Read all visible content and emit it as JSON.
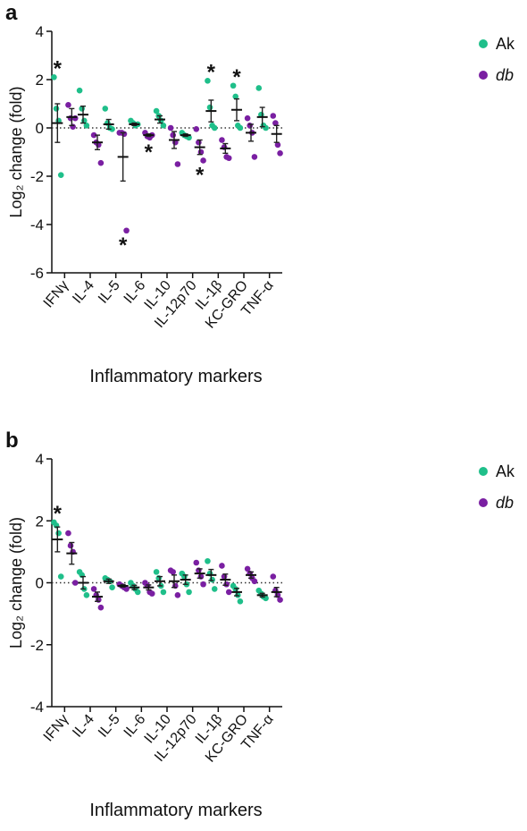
{
  "chart_data": [
    {
      "type": "dot",
      "panel": "a",
      "ylabel": "Log₂ change (fold)",
      "xlabel": "Inflammatory markers",
      "categories": [
        "IFNγ",
        "IL-4",
        "IL-5",
        "IL-6",
        "IL-10",
        "IL-12p70",
        "IL-1β",
        "KC-GRO",
        "TNF-α"
      ],
      "ylim": [
        -6,
        4
      ],
      "yticks": [
        -6,
        -4,
        -2,
        0,
        2,
        4
      ],
      "legend": "upper right",
      "series": [
        {
          "name": "Ak",
          "color": "#1fbf8a",
          "points": [
            [
              2.1,
              0.8,
              0.3,
              -1.95
            ],
            [
              1.55,
              0.8,
              0.3,
              0.1
            ],
            [
              0.8,
              0.2,
              0.0,
              -0.05
            ],
            [
              0.3,
              0.2,
              0.1,
              0.15
            ],
            [
              0.7,
              0.5,
              0.3,
              0.1
            ],
            [
              -0.2,
              -0.3,
              -0.35,
              -0.4
            ],
            [
              1.95,
              0.85,
              0.1,
              0.0
            ],
            [
              1.75,
              1.3,
              0.1,
              0.0
            ],
            [
              1.65,
              0.55,
              0.1,
              0.0
            ]
          ],
          "means": [
            0.2,
            0.55,
            0.15,
            0.15,
            0.35,
            -0.3,
            0.7,
            0.75,
            0.45
          ],
          "errors": [
            0.8,
            0.35,
            0.2,
            0.05,
            0.15,
            0.05,
            0.45,
            0.45,
            0.4
          ],
          "stars": [
            "*",
            null,
            null,
            null,
            null,
            null,
            "*",
            "*",
            null
          ]
        },
        {
          "name": "db",
          "color": "#7a1fa2",
          "points": [
            [
              0.95,
              0.4,
              0.05,
              0.4
            ],
            [
              -0.3,
              -0.6,
              -0.7,
              -1.45
            ],
            [
              -0.2,
              -0.2,
              -0.25,
              -4.25
            ],
            [
              -0.2,
              -0.35,
              -0.4,
              -0.3
            ],
            [
              0.0,
              -0.3,
              -0.6,
              -1.5
            ],
            [
              -0.05,
              -0.6,
              -1.0,
              -1.35
            ],
            [
              -0.5,
              -0.8,
              -1.2,
              -1.25
            ],
            [
              0.4,
              0.1,
              -0.2,
              -1.2
            ],
            [
              0.5,
              0.2,
              -0.7,
              -1.05
            ]
          ],
          "means": [
            0.45,
            -0.6,
            -1.2,
            -0.3,
            -0.5,
            -0.8,
            -0.85,
            -0.2,
            -0.25
          ],
          "errors": [
            0.35,
            0.3,
            1.0,
            0.05,
            0.35,
            0.3,
            0.2,
            0.35,
            0.35
          ],
          "stars": [
            null,
            null,
            "*",
            "*",
            null,
            "*",
            null,
            null,
            null
          ]
        }
      ]
    },
    {
      "type": "dot",
      "panel": "b",
      "ylabel": "Log₂ change (fold)",
      "xlabel": "Inflammatory markers",
      "categories": [
        "IFNγ",
        "IL-4",
        "IL-5",
        "IL-6",
        "IL-10",
        "IL-12p70",
        "IL-1β",
        "KC-GRO",
        "TNF-α"
      ],
      "ylim": [
        -4,
        4
      ],
      "yticks": [
        -4,
        -2,
        0,
        2,
        4
      ],
      "legend": "upper right",
      "series": [
        {
          "name": "Ak",
          "color": "#1fbf8a",
          "points": [
            [
              1.95,
              1.85,
              1.6,
              0.2
            ],
            [
              0.35,
              0.25,
              -0.2,
              -0.4
            ],
            [
              0.15,
              0.1,
              0.05,
              -0.15
            ],
            [
              0.0,
              -0.1,
              -0.2,
              -0.3
            ],
            [
              0.35,
              0.15,
              -0.1,
              -0.3
            ],
            [
              0.3,
              0.2,
              -0.05,
              -0.3
            ],
            [
              0.7,
              0.3,
              0.1,
              -0.2
            ],
            [
              -0.1,
              -0.2,
              -0.4,
              -0.6
            ],
            [
              -0.25,
              -0.35,
              -0.45,
              -0.5
            ]
          ],
          "means": [
            1.4,
            0.0,
            0.05,
            -0.15,
            0.05,
            0.1,
            0.25,
            -0.3,
            -0.4
          ],
          "errors": [
            0.4,
            0.2,
            0.07,
            0.07,
            0.15,
            0.15,
            0.18,
            0.12,
            0.06
          ],
          "stars": [
            "*",
            null,
            null,
            null,
            null,
            null,
            null,
            null,
            null
          ]
        },
        {
          "name": "db",
          "color": "#7a1fa2",
          "points": [
            [
              1.6,
              1.2,
              1.0,
              0.0
            ],
            [
              -0.2,
              -0.4,
              -0.55,
              -0.8
            ],
            [
              -0.05,
              -0.1,
              -0.15,
              -0.2
            ],
            [
              0.0,
              -0.1,
              -0.3,
              -0.35
            ],
            [
              0.4,
              0.35,
              -0.1,
              -0.4
            ],
            [
              0.65,
              0.4,
              0.2,
              -0.05
            ],
            [
              0.55,
              0.2,
              -0.05,
              -0.3
            ],
            [
              0.45,
              0.3,
              0.15,
              0.05
            ],
            [
              0.2,
              -0.25,
              -0.4,
              -0.55
            ]
          ],
          "means": [
            0.95,
            -0.45,
            -0.1,
            -0.15,
            0.05,
            0.3,
            0.1,
            0.25,
            -0.3
          ],
          "errors": [
            0.35,
            0.15,
            0.04,
            0.08,
            0.2,
            0.15,
            0.18,
            0.1,
            0.15
          ],
          "stars": [
            null,
            null,
            null,
            null,
            null,
            null,
            null,
            null,
            null
          ]
        }
      ]
    }
  ]
}
